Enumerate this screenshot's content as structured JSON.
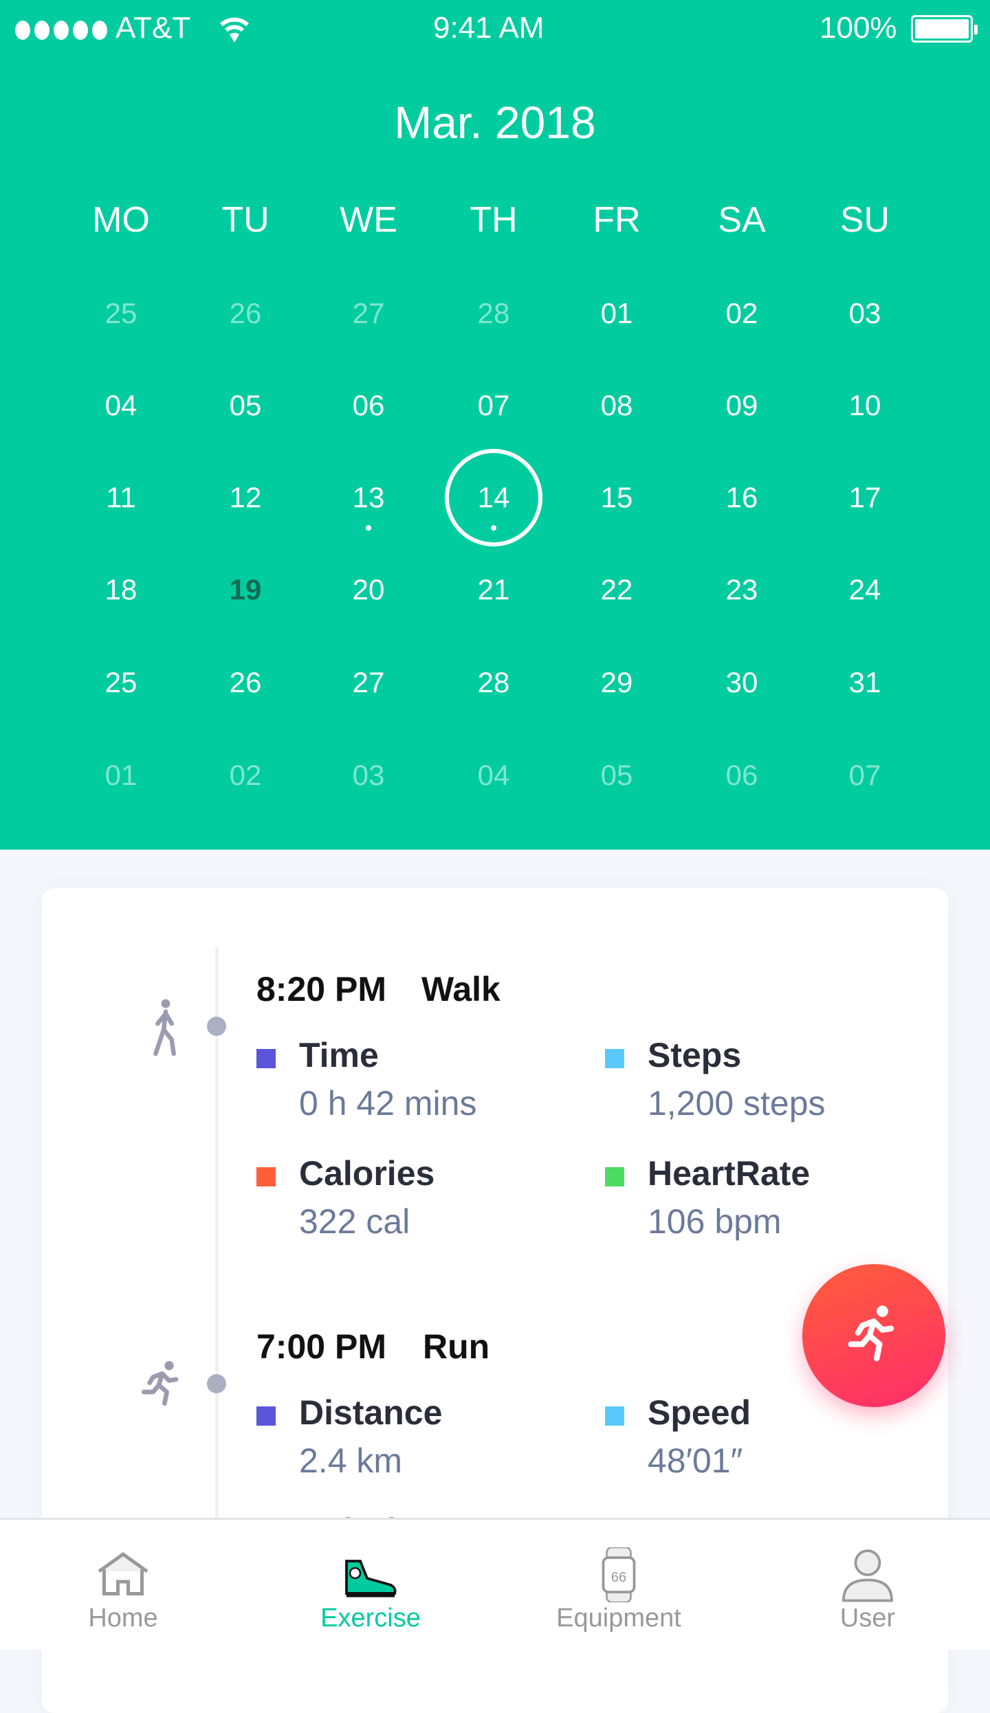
{
  "status_bar": {
    "carrier": "AT&T",
    "time": "9:41 AM",
    "battery": "100%"
  },
  "calendar": {
    "title": "Mar. 2018",
    "weekdays": [
      "MO",
      "TU",
      "WE",
      "TH",
      "FR",
      "SA",
      "SU"
    ],
    "rows": [
      [
        {
          "d": "25",
          "muted": true
        },
        {
          "d": "26",
          "muted": true
        },
        {
          "d": "27",
          "muted": true
        },
        {
          "d": "28",
          "muted": true
        },
        {
          "d": "01"
        },
        {
          "d": "02"
        },
        {
          "d": "03"
        }
      ],
      [
        {
          "d": "04"
        },
        {
          "d": "05"
        },
        {
          "d": "06"
        },
        {
          "d": "07"
        },
        {
          "d": "08"
        },
        {
          "d": "09"
        },
        {
          "d": "10"
        }
      ],
      [
        {
          "d": "11"
        },
        {
          "d": "12"
        },
        {
          "d": "13",
          "dot": true
        },
        {
          "d": "14",
          "dot": true,
          "selected": true
        },
        {
          "d": "15"
        },
        {
          "d": "16"
        },
        {
          "d": "17"
        }
      ],
      [
        {
          "d": "18"
        },
        {
          "d": "19",
          "today": true
        },
        {
          "d": "20"
        },
        {
          "d": "21"
        },
        {
          "d": "22"
        },
        {
          "d": "23"
        },
        {
          "d": "24"
        }
      ],
      [
        {
          "d": "25"
        },
        {
          "d": "26"
        },
        {
          "d": "27"
        },
        {
          "d": "28"
        },
        {
          "d": "29"
        },
        {
          "d": "30"
        },
        {
          "d": "31"
        }
      ],
      [
        {
          "d": "01",
          "muted": true
        },
        {
          "d": "02",
          "muted": true
        },
        {
          "d": "03",
          "muted": true
        },
        {
          "d": "04",
          "muted": true
        },
        {
          "d": "05",
          "muted": true
        },
        {
          "d": "06",
          "muted": true
        },
        {
          "d": "07",
          "muted": true
        }
      ]
    ]
  },
  "colors": {
    "brand": "#00cc9f",
    "purple": "#5b55dc",
    "blue": "#5ac8fa",
    "orange": "#ff5e3a",
    "green": "#4cd964"
  },
  "events": [
    {
      "time": "8:20 PM",
      "type": "Walk",
      "icon": "walk-icon",
      "metrics": [
        {
          "label": "Time",
          "value": "0 h 42 mins",
          "color": "#5b55dc"
        },
        {
          "label": "Steps",
          "value": "1,200 steps",
          "color": "#5ac8fa"
        },
        {
          "label": "Calories",
          "value": "322 cal",
          "color": "#ff5e3a"
        },
        {
          "label": "HeartRate",
          "value": "106 bpm",
          "color": "#4cd964"
        }
      ]
    },
    {
      "time": "7:00 PM",
      "type": "Run",
      "icon": "run-icon",
      "metrics": [
        {
          "label": "Distance",
          "value": "2.4 km",
          "color": "#5b55dc"
        },
        {
          "label": "Speed",
          "value": "48′01″",
          "color": "#5ac8fa"
        },
        {
          "label": "Calories",
          "color": "#ff5e3a"
        },
        {
          "label": "HeartRate",
          "color": "#4cd964"
        }
      ]
    }
  ],
  "fab": {
    "icon": "run-icon"
  },
  "tabs": [
    {
      "label": "Home",
      "icon": "home-icon"
    },
    {
      "label": "Exercise",
      "icon": "sneaker-icon",
      "active": true
    },
    {
      "label": "Equipment",
      "icon": "watch-icon",
      "watch_text": "66"
    },
    {
      "label": "User",
      "icon": "user-icon"
    }
  ]
}
